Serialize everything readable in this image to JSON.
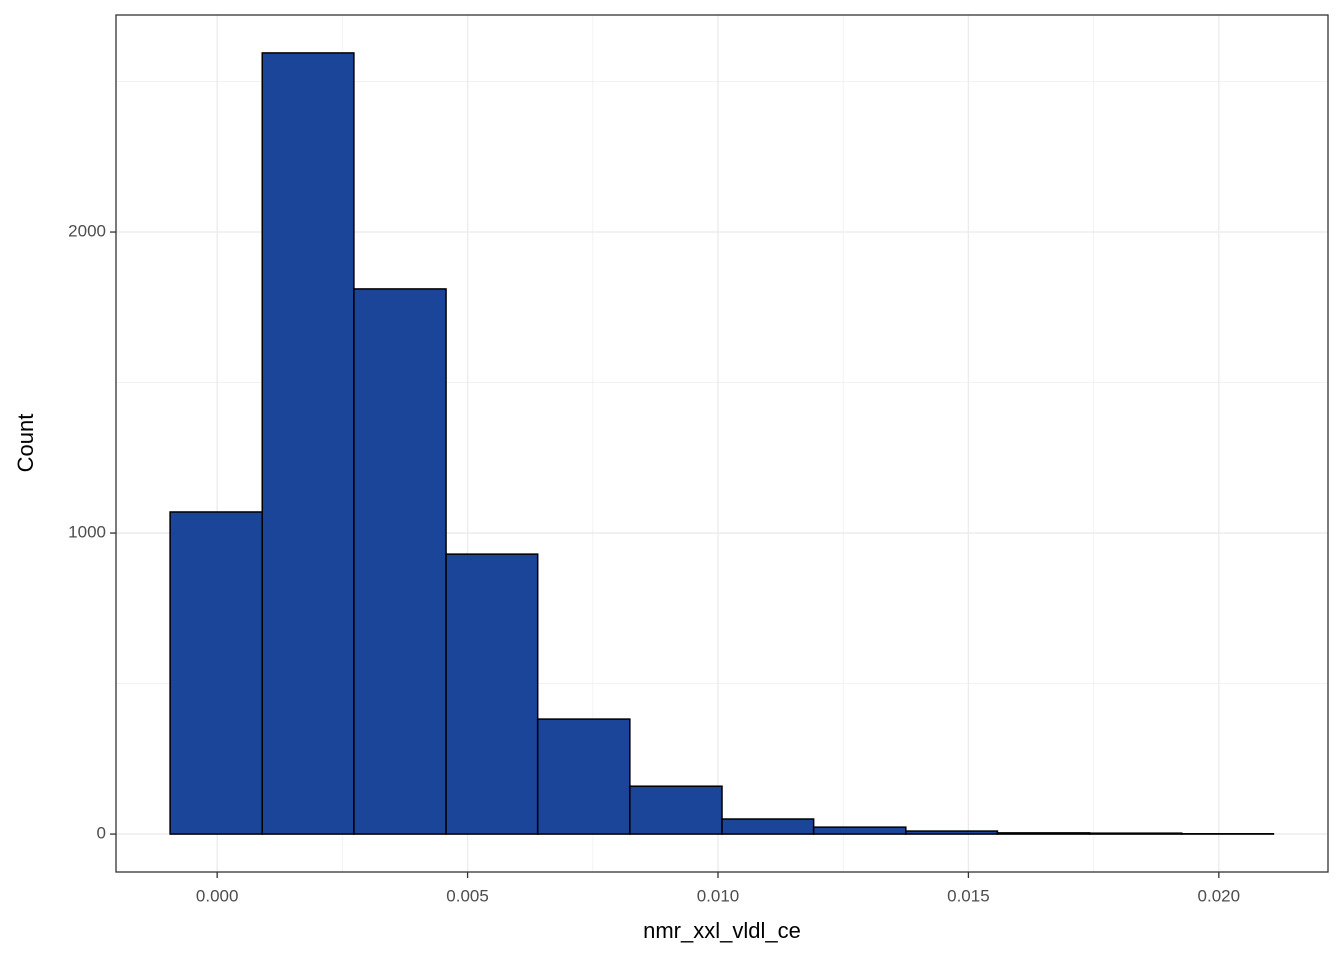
{
  "chart_data": {
    "type": "histogram",
    "x_label": "nmr_xxl_vldl_ce",
    "y_label": "Count",
    "bins": [
      -0.00094,
      0.0009,
      0.00273,
      0.00457,
      0.0064,
      0.00824,
      0.01008,
      0.01191,
      0.01375,
      0.01558,
      0.01742,
      0.01926,
      0.02109
    ],
    "values": [
      1070,
      2595,
      1811,
      930,
      382,
      159,
      50,
      23,
      10,
      4,
      3,
      1
    ],
    "color": "#1a4599",
    "edge_color": "#000000",
    "xlim": [
      -0.00202,
      0.02218
    ],
    "ylim": [
      -126,
      2721
    ],
    "xticks": [
      {
        "value": 0,
        "label": "0.000"
      },
      {
        "value": 0.005,
        "label": "0.005"
      },
      {
        "value": 0.01,
        "label": "0.010"
      },
      {
        "value": 0.015,
        "label": "0.015"
      },
      {
        "value": 0.02,
        "label": "0.020"
      }
    ],
    "yticks": [
      0,
      1000,
      2000
    ],
    "grid": true
  }
}
